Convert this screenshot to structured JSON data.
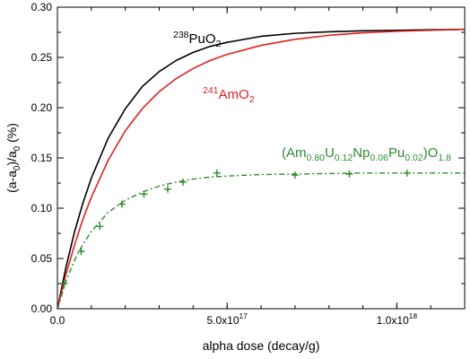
{
  "chart_data": {
    "type": "line",
    "xlabel_parts": [
      {
        "t": "alpha dose (decay/g)",
        "s": "n"
      }
    ],
    "ylabel_parts": [
      {
        "t": "(a-a",
        "s": "n"
      },
      {
        "t": "0",
        "s": "sub"
      },
      {
        "t": ")/a",
        "s": "n"
      },
      {
        "t": "0",
        "s": "sub"
      },
      {
        "t": " (%)",
        "s": "n"
      }
    ],
    "xlim": [
      0,
      1.2e+18
    ],
    "ylim": [
      0,
      0.3
    ],
    "y_ticks": [
      {
        "v": 0.0,
        "label": "0.00"
      },
      {
        "v": 0.05,
        "label": "0.05"
      },
      {
        "v": 0.1,
        "label": "0.10"
      },
      {
        "v": 0.15,
        "label": "0.15"
      },
      {
        "v": 0.2,
        "label": "0.20"
      },
      {
        "v": 0.25,
        "label": "0.25"
      },
      {
        "v": 0.3,
        "label": "0.30"
      }
    ],
    "x_ticks": [
      {
        "v": 0,
        "parts": [
          {
            "t": "0.0",
            "s": "n"
          }
        ]
      },
      {
        "v": 5e+17,
        "parts": [
          {
            "t": "5.0x10",
            "s": "n"
          },
          {
            "t": "17",
            "s": "sup"
          }
        ]
      },
      {
        "v": 1e+18,
        "parts": [
          {
            "t": "1.0x10",
            "s": "n"
          },
          {
            "t": "18",
            "s": "sup"
          }
        ]
      }
    ],
    "x_minor_step": 1e+17,
    "y_minor_step": 0.025,
    "series": [
      {
        "label_parts": [
          {
            "t": "238",
            "s": "sup"
          },
          {
            "t": "PuO",
            "s": "n"
          },
          {
            "t": "2",
            "s": "sub"
          }
        ],
        "color": "#000000",
        "style": "solid",
        "x": [
          0,
          2.5e+16,
          5e+16,
          7.5e+16,
          1e+17,
          1.5e+17,
          2e+17,
          2.5e+17,
          3e+17,
          3.5e+17,
          4e+17,
          4.5e+17,
          5e+17,
          6e+17,
          7e+17,
          8e+17,
          9e+17,
          1e+18,
          1.1e+18,
          1.2e+18
        ],
        "y": [
          0,
          0.041,
          0.076,
          0.105,
          0.13,
          0.17,
          0.199,
          0.221,
          0.236,
          0.247,
          0.255,
          0.261,
          0.265,
          0.271,
          0.274,
          0.2755,
          0.2765,
          0.277,
          0.2775,
          0.278
        ]
      },
      {
        "label_parts": [
          {
            "t": "241",
            "s": "sup"
          },
          {
            "t": "AmO",
            "s": "n"
          },
          {
            "t": "2",
            "s": "sub"
          }
        ],
        "color": "#e02020",
        "style": "solid",
        "x": [
          0,
          2.5e+16,
          5e+16,
          7.5e+16,
          1e+17,
          1.5e+17,
          2e+17,
          2.5e+17,
          3e+17,
          3.5e+17,
          4e+17,
          4.5e+17,
          5e+17,
          6e+17,
          7e+17,
          8e+17,
          9e+17,
          1e+18,
          1.1e+18,
          1.2e+18
        ],
        "y": [
          0,
          0.034,
          0.063,
          0.089,
          0.111,
          0.148,
          0.177,
          0.199,
          0.216,
          0.229,
          0.239,
          0.247,
          0.253,
          0.262,
          0.268,
          0.272,
          0.2745,
          0.276,
          0.277,
          0.278
        ]
      },
      {
        "label_parts": [
          {
            "t": "(Am",
            "s": "n"
          },
          {
            "t": "0.80",
            "s": "sub"
          },
          {
            "t": "U",
            "s": "n"
          },
          {
            "t": "0.12",
            "s": "sub"
          },
          {
            "t": "Np",
            "s": "n"
          },
          {
            "t": "0.06",
            "s": "sub"
          },
          {
            "t": "Pu",
            "s": "n"
          },
          {
            "t": "0.02",
            "s": "sub"
          },
          {
            "t": ")O",
            "s": "n"
          },
          {
            "t": "1.8",
            "s": "sub"
          }
        ],
        "color": "#2e8b2e",
        "style": "dashdot",
        "x": [
          0,
          2.5e+16,
          5e+16,
          7.5e+16,
          1e+17,
          1.5e+17,
          2e+17,
          2.5e+17,
          3e+17,
          3.5e+17,
          4e+17,
          4.5e+17,
          5e+17,
          6e+17,
          7e+17,
          8e+17,
          9e+17,
          1e+18,
          1.1e+18,
          1.2e+18
        ],
        "y": [
          0,
          0.027,
          0.048,
          0.064,
          0.077,
          0.096,
          0.108,
          0.116,
          0.122,
          0.126,
          0.129,
          0.131,
          0.132,
          0.1335,
          0.134,
          0.1345,
          0.135,
          0.135,
          0.135,
          0.135
        ],
        "points_x": [
          2e+16,
          7e+16,
          1.25e+17,
          1.9e+17,
          2.55e+17,
          3.25e+17,
          3.7e+17,
          4.7e+17,
          7e+17,
          8.6e+17,
          1.03e+18
        ],
        "points_y": [
          0.025,
          0.057,
          0.082,
          0.104,
          0.114,
          0.119,
          0.126,
          0.135,
          0.133,
          0.134,
          0.135
        ]
      }
    ]
  }
}
